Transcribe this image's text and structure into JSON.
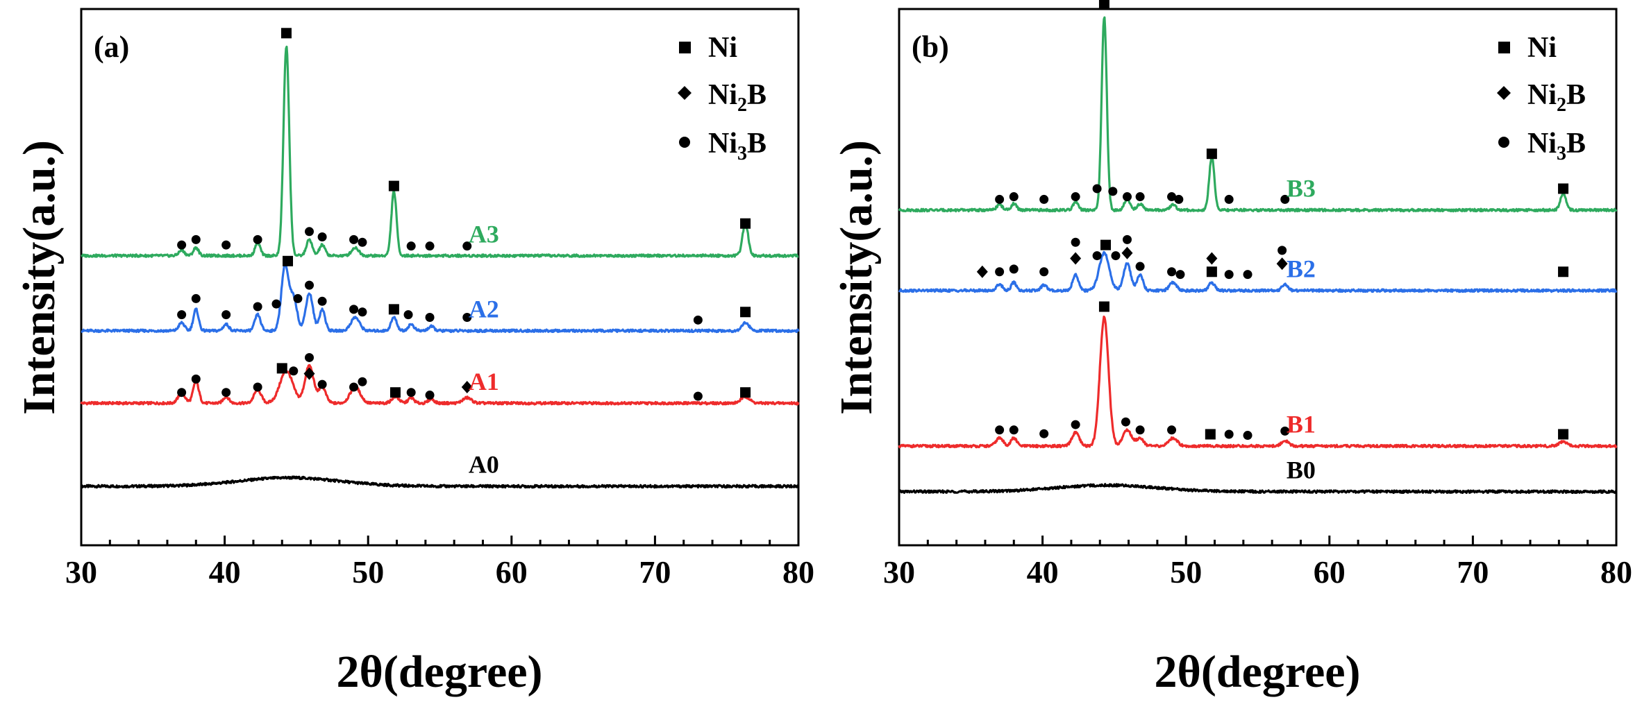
{
  "colors": {
    "A0": "#000000",
    "A1": "#ee2b2b",
    "A2": "#2b6fe8",
    "A3": "#2eaa5e",
    "B0": "#000000",
    "B1": "#ee2b2b",
    "B2": "#2b6fe8",
    "B3": "#2eaa5e"
  },
  "legend": {
    "ni": "Ni",
    "ni2b_main": "Ni",
    "ni2b_sub": "2",
    "ni2b_tail": "B",
    "ni3b_main": "Ni",
    "ni3b_sub": "3",
    "ni3b_tail": "B",
    "ni_icon": "square-marker-icon",
    "ni2b_icon": "diamond-marker-icon",
    "ni3b_icon": "circle-marker-icon"
  },
  "chart_data": [
    {
      "type": "line",
      "panel": "(a)",
      "xlabel": "2θ(degree)",
      "ylabel": "Intensity(a.u.)",
      "xlim": [
        30,
        80
      ],
      "ylim": [
        0,
        100
      ],
      "xticks": [
        30,
        40,
        50,
        60,
        70,
        80
      ],
      "series": [
        {
          "name": "A0",
          "baseline": 11,
          "hump": {
            "center": 44.5,
            "height": 1.6,
            "width": 3.5
          },
          "peaks": [],
          "markers": []
        },
        {
          "name": "A1",
          "baseline": 26.5,
          "peaks": [
            [
              37,
              1.8,
              0.25
            ],
            [
              38,
              4,
              0.2
            ],
            [
              40.1,
              1.2,
              0.2
            ],
            [
              42.3,
              2.5,
              0.25
            ],
            [
              44.3,
              6,
              0.45
            ],
            [
              45.9,
              7,
              0.3
            ],
            [
              46.8,
              3,
              0.25
            ],
            [
              49.1,
              3,
              0.35
            ],
            [
              51.9,
              1.2,
              0.25
            ],
            [
              53,
              1,
              0.2
            ],
            [
              54.4,
              0.8,
              0.2
            ],
            [
              56.9,
              1,
              0.3
            ],
            [
              76.3,
              1.2,
              0.3
            ]
          ],
          "markers": [
            {
              "x": 37,
              "type": "circle",
              "h": 2
            },
            {
              "x": 38,
              "type": "circle",
              "h": 4.5
            },
            {
              "x": 40.1,
              "type": "circle",
              "h": 2
            },
            {
              "x": 42.3,
              "type": "circle",
              "h": 3
            },
            {
              "x": 44,
              "type": "square",
              "h": 6.5
            },
            {
              "x": 44.8,
              "type": "circle",
              "h": 6
            },
            {
              "x": 45.9,
              "type": "diamond",
              "h": 5.5
            },
            {
              "x": 45.9,
              "type": "circle",
              "h": 8.5
            },
            {
              "x": 46.8,
              "type": "circle",
              "h": 3.5
            },
            {
              "x": 49,
              "type": "circle",
              "h": 3
            },
            {
              "x": 49.6,
              "type": "circle",
              "h": 4
            },
            {
              "x": 51.9,
              "type": "square",
              "h": 2
            },
            {
              "x": 53,
              "type": "circle",
              "h": 2
            },
            {
              "x": 54.3,
              "type": "circle",
              "h": 1.5
            },
            {
              "x": 56.9,
              "type": "diamond",
              "h": 3
            },
            {
              "x": 73,
              "type": "circle",
              "h": 1.3
            },
            {
              "x": 76.3,
              "type": "square",
              "h": 2
            }
          ]
        },
        {
          "name": "A2",
          "baseline": 40,
          "peaks": [
            [
              37,
              1.5,
              0.2
            ],
            [
              38,
              4,
              0.18
            ],
            [
              40.1,
              1.2,
              0.2
            ],
            [
              42.3,
              3,
              0.2
            ],
            [
              44.2,
              12,
              0.25
            ],
            [
              44.8,
              6,
              0.25
            ],
            [
              45.9,
              7,
              0.25
            ],
            [
              46.8,
              4,
              0.2
            ],
            [
              49.1,
              2.5,
              0.3
            ],
            [
              51.8,
              2.5,
              0.2
            ],
            [
              53,
              1.2,
              0.2
            ],
            [
              54.4,
              0.8,
              0.2
            ],
            [
              76.3,
              1.5,
              0.25
            ]
          ],
          "markers": [
            {
              "x": 37,
              "type": "circle",
              "h": 3
            },
            {
              "x": 38,
              "type": "circle",
              "h": 6
            },
            {
              "x": 40.1,
              "type": "circle",
              "h": 3
            },
            {
              "x": 42.3,
              "type": "circle",
              "h": 4.5
            },
            {
              "x": 43.6,
              "type": "circle",
              "h": 5
            },
            {
              "x": 44.4,
              "type": "square",
              "h": 13
            },
            {
              "x": 45.1,
              "type": "circle",
              "h": 6
            },
            {
              "x": 45.9,
              "type": "circle",
              "h": 8.5
            },
            {
              "x": 46.8,
              "type": "circle",
              "h": 5.5
            },
            {
              "x": 49,
              "type": "circle",
              "h": 4
            },
            {
              "x": 49.6,
              "type": "circle",
              "h": 3.5
            },
            {
              "x": 51.8,
              "type": "square",
              "h": 4
            },
            {
              "x": 52.8,
              "type": "circle",
              "h": 3
            },
            {
              "x": 54.3,
              "type": "circle",
              "h": 2.5
            },
            {
              "x": 56.9,
              "type": "circle",
              "h": 2.5
            },
            {
              "x": 73,
              "type": "circle",
              "h": 2
            },
            {
              "x": 76.3,
              "type": "square",
              "h": 3.5
            }
          ]
        },
        {
          "name": "A3",
          "baseline": 54,
          "peaks": [
            [
              37,
              1,
              0.2
            ],
            [
              38,
              1.5,
              0.18
            ],
            [
              42.3,
              2.5,
              0.18
            ],
            [
              44.3,
              39,
              0.2
            ],
            [
              45.9,
              3,
              0.2
            ],
            [
              46.8,
              2,
              0.2
            ],
            [
              49.1,
              1.5,
              0.25
            ],
            [
              51.8,
              12,
              0.18
            ],
            [
              76.3,
              6,
              0.2
            ]
          ],
          "markers": [
            {
              "x": 37,
              "type": "circle",
              "h": 2
            },
            {
              "x": 38,
              "type": "circle",
              "h": 3
            },
            {
              "x": 40.1,
              "type": "circle",
              "h": 2
            },
            {
              "x": 42.3,
              "type": "circle",
              "h": 3
            },
            {
              "x": 44.3,
              "type": "square",
              "h": 41.5
            },
            {
              "x": 45.9,
              "type": "circle",
              "h": 4.5
            },
            {
              "x": 46.8,
              "type": "circle",
              "h": 3.5
            },
            {
              "x": 49,
              "type": "circle",
              "h": 3
            },
            {
              "x": 49.6,
              "type": "circle",
              "h": 2.5
            },
            {
              "x": 51.8,
              "type": "square",
              "h": 13
            },
            {
              "x": 53,
              "type": "circle",
              "h": 1.8
            },
            {
              "x": 54.3,
              "type": "circle",
              "h": 1.8
            },
            {
              "x": 56.9,
              "type": "circle",
              "h": 1.8
            },
            {
              "x": 76.3,
              "type": "square",
              "h": 6
            }
          ]
        }
      ],
      "label_x": {
        "A0": 57,
        "A1": 57,
        "A2": 57,
        "A3": 57
      },
      "label_offset": 2.5
    },
    {
      "type": "line",
      "panel": "(b)",
      "xlabel": "2θ(degree)",
      "ylabel": "Intensity(a.u.)",
      "xlim": [
        30,
        80
      ],
      "ylim": [
        0,
        100
      ],
      "xticks": [
        30,
        40,
        50,
        60,
        70,
        80
      ],
      "series": [
        {
          "name": "B0",
          "baseline": 10,
          "hump": {
            "center": 44.5,
            "height": 1.2,
            "width": 3.5
          },
          "peaks": [],
          "markers": []
        },
        {
          "name": "B1",
          "baseline": 18.5,
          "peaks": [
            [
              37,
              1.5,
              0.25
            ],
            [
              38,
              1.5,
              0.2
            ],
            [
              42.3,
              2.5,
              0.25
            ],
            [
              44.3,
              24,
              0.3
            ],
            [
              45.9,
              3,
              0.3
            ],
            [
              46.8,
              1.5,
              0.25
            ],
            [
              49.1,
              1.5,
              0.3
            ],
            [
              56.9,
              1,
              0.25
            ],
            [
              76.3,
              0.8,
              0.3
            ]
          ],
          "markers": [
            {
              "x": 37,
              "type": "circle",
              "h": 3
            },
            {
              "x": 38,
              "type": "circle",
              "h": 3
            },
            {
              "x": 40.1,
              "type": "circle",
              "h": 2.3
            },
            {
              "x": 42.3,
              "type": "circle",
              "h": 4
            },
            {
              "x": 44.3,
              "type": "square",
              "h": 26
            },
            {
              "x": 45.8,
              "type": "circle",
              "h": 4.5
            },
            {
              "x": 46.8,
              "type": "circle",
              "h": 3
            },
            {
              "x": 49,
              "type": "circle",
              "h": 3
            },
            {
              "x": 51.7,
              "type": "square",
              "h": 2.2
            },
            {
              "x": 53,
              "type": "circle",
              "h": 2.2
            },
            {
              "x": 54.3,
              "type": "circle",
              "h": 2
            },
            {
              "x": 56.9,
              "type": "circle",
              "h": 2.8
            },
            {
              "x": 76.3,
              "type": "square",
              "h": 2.2
            }
          ]
        },
        {
          "name": "B2",
          "baseline": 47.5,
          "peaks": [
            [
              37,
              1.2,
              0.2
            ],
            [
              38,
              1.5,
              0.18
            ],
            [
              40.1,
              1,
              0.2
            ],
            [
              42.3,
              3,
              0.2
            ],
            [
              44.3,
              7,
              0.35
            ],
            [
              45.9,
              5,
              0.25
            ],
            [
              46.8,
              3,
              0.2
            ],
            [
              49.1,
              1.5,
              0.25
            ],
            [
              51.8,
              1.5,
              0.2
            ],
            [
              56.9,
              1.2,
              0.2
            ]
          ],
          "markers": [
            {
              "x": 35.8,
              "type": "diamond",
              "h": 3.5
            },
            {
              "x": 37,
              "type": "circle",
              "h": 3.5
            },
            {
              "x": 38,
              "type": "circle",
              "h": 4
            },
            {
              "x": 40.1,
              "type": "circle",
              "h": 3.5
            },
            {
              "x": 42.3,
              "type": "diamond",
              "h": 6
            },
            {
              "x": 42.3,
              "type": "circle",
              "h": 9
            },
            {
              "x": 43.8,
              "type": "circle",
              "h": 6.5
            },
            {
              "x": 44.4,
              "type": "square",
              "h": 8.5
            },
            {
              "x": 45.1,
              "type": "circle",
              "h": 6.5
            },
            {
              "x": 45.9,
              "type": "diamond",
              "h": 7
            },
            {
              "x": 45.9,
              "type": "circle",
              "h": 9.5
            },
            {
              "x": 46.8,
              "type": "circle",
              "h": 4.5
            },
            {
              "x": 49,
              "type": "circle",
              "h": 3.5
            },
            {
              "x": 49.6,
              "type": "circle",
              "h": 3
            },
            {
              "x": 51.8,
              "type": "square",
              "h": 3.5
            },
            {
              "x": 51.8,
              "type": "diamond",
              "h": 6
            },
            {
              "x": 53,
              "type": "circle",
              "h": 3
            },
            {
              "x": 54.3,
              "type": "circle",
              "h": 3
            },
            {
              "x": 56.7,
              "type": "diamond",
              "h": 5
            },
            {
              "x": 56.7,
              "type": "circle",
              "h": 7.5
            },
            {
              "x": 76.3,
              "type": "square",
              "h": 3.5
            }
          ]
        },
        {
          "name": "B3",
          "baseline": 62.5,
          "peaks": [
            [
              37,
              1,
              0.2
            ],
            [
              38,
              1.2,
              0.18
            ],
            [
              42.3,
              1.5,
              0.18
            ],
            [
              44.3,
              36,
              0.18
            ],
            [
              45.9,
              2,
              0.2
            ],
            [
              46.8,
              1.2,
              0.2
            ],
            [
              49.1,
              1,
              0.2
            ],
            [
              51.8,
              10,
              0.18
            ],
            [
              76.3,
              3,
              0.2
            ]
          ],
          "markers": [
            {
              "x": 37,
              "type": "circle",
              "h": 2
            },
            {
              "x": 38,
              "type": "circle",
              "h": 2.5
            },
            {
              "x": 40.1,
              "type": "circle",
              "h": 2
            },
            {
              "x": 42.3,
              "type": "circle",
              "h": 2.5
            },
            {
              "x": 43.8,
              "type": "circle",
              "h": 4
            },
            {
              "x": 44.3,
              "type": "square",
              "h": 38.5
            },
            {
              "x": 44.9,
              "type": "circle",
              "h": 3.5
            },
            {
              "x": 45.9,
              "type": "circle",
              "h": 2.5
            },
            {
              "x": 46.8,
              "type": "circle",
              "h": 2.5
            },
            {
              "x": 49,
              "type": "circle",
              "h": 2.5
            },
            {
              "x": 49.5,
              "type": "circle",
              "h": 2
            },
            {
              "x": 51.8,
              "type": "square",
              "h": 10.5
            },
            {
              "x": 53,
              "type": "circle",
              "h": 2
            },
            {
              "x": 56.9,
              "type": "circle",
              "h": 2
            },
            {
              "x": 76.3,
              "type": "square",
              "h": 4
            }
          ]
        }
      ],
      "label_x": {
        "B0": 57,
        "B1": 57,
        "B2": 57,
        "B3": 57
      },
      "label_offset": 2.5
    }
  ]
}
